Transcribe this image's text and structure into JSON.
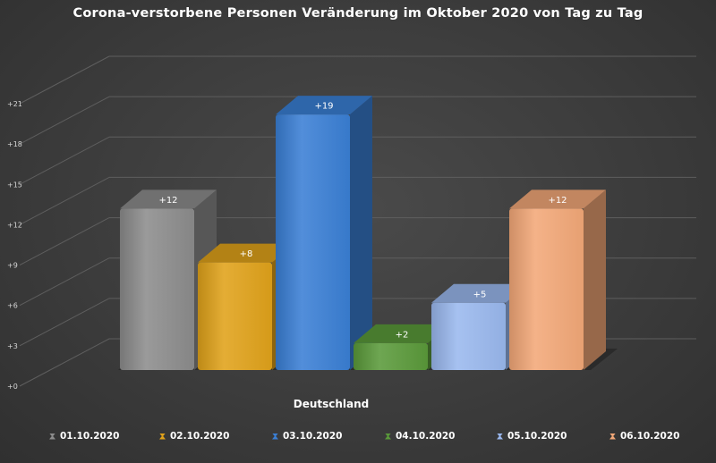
{
  "chart_data": {
    "type": "bar",
    "title": "Corona-verstorbene Personen Veränderung im Oktober 2020 von Tag zu Tag",
    "categories": [
      "Deutschland"
    ],
    "xlabel": "",
    "ylabel": "",
    "ylim": [
      0,
      21
    ],
    "yticks": [
      "+0",
      "+3",
      "+6",
      "+9",
      "+12",
      "+15",
      "+18",
      "+21"
    ],
    "grid": true,
    "legend_position": "bottom",
    "series": [
      {
        "name": "01.10.2020",
        "values": [
          12
        ],
        "label": "+12",
        "color": "#8c8c8c"
      },
      {
        "name": "02.10.2020",
        "values": [
          8
        ],
        "label": "+8",
        "color": "#e0a21a"
      },
      {
        "name": "03.10.2020",
        "values": [
          19
        ],
        "label": "+19",
        "color": "#3a7fd5"
      },
      {
        "name": "04.10.2020",
        "values": [
          2
        ],
        "label": "+2",
        "color": "#5a9a3a"
      },
      {
        "name": "05.10.2020",
        "values": [
          5
        ],
        "label": "+5",
        "color": "#9ab8ee"
      },
      {
        "name": "06.10.2020",
        "values": [
          12
        ],
        "label": "+12",
        "color": "#f3a878"
      }
    ]
  }
}
